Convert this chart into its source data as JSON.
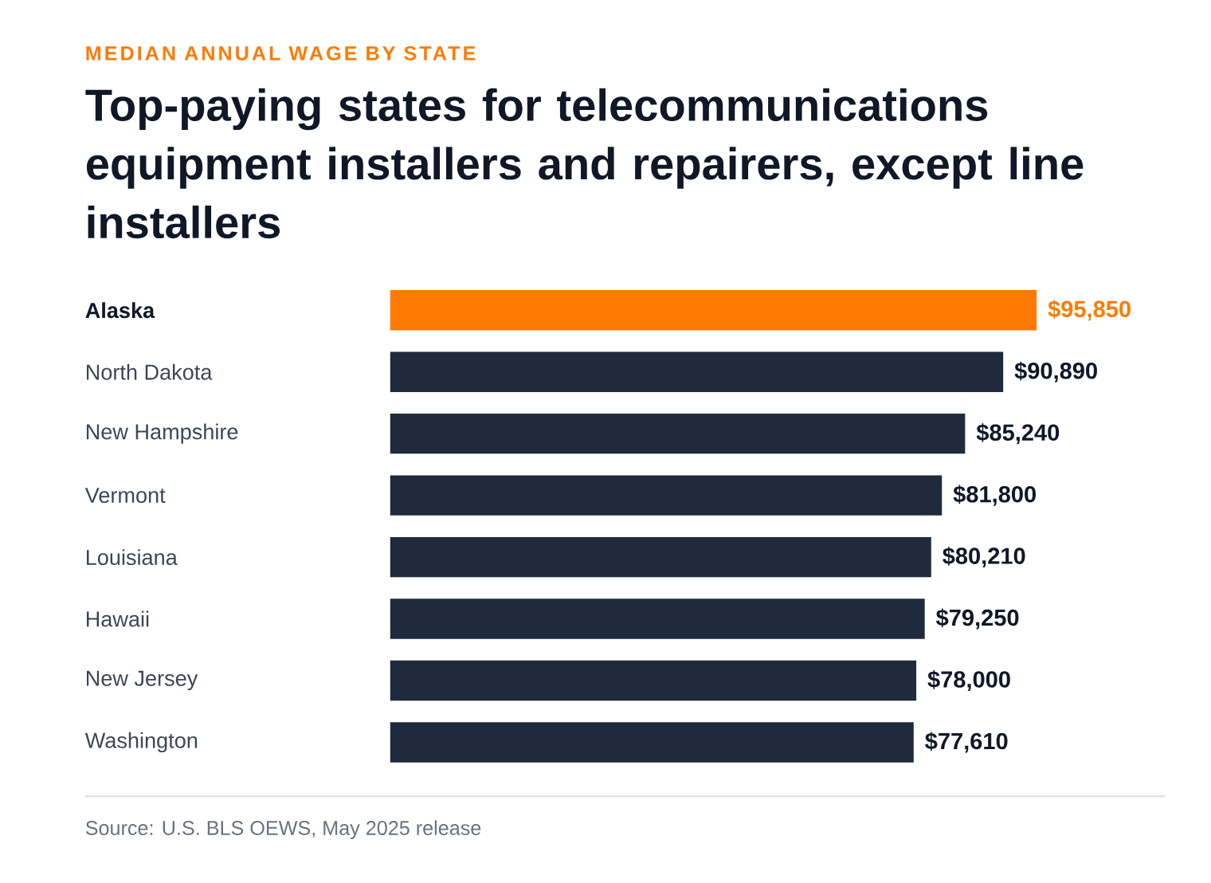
{
  "chart_data": {
    "type": "bar",
    "orientation": "horizontal",
    "subtitle": "MEDIAN ANNUAL WAGE BY STATE",
    "title": "Top-paying states for telecommunications equipment installers and repairers, except line installers",
    "categories": [
      "Alaska",
      "North Dakota",
      "New Hampshire",
      "Vermont",
      "Louisiana",
      "Hawaii",
      "New Jersey",
      "Washington"
    ],
    "values": [
      95850,
      90890,
      85240,
      81800,
      80210,
      79250,
      78000,
      77610
    ],
    "value_labels": [
      "$95,850",
      "$90,890",
      "$85,240",
      "$81,800",
      "$80,210",
      "$79,250",
      "$78,000",
      "$77,610"
    ],
    "colors": [
      "#ff7a00",
      "#1f2a3c",
      "#1f2a3c",
      "#1f2a3c",
      "#1f2a3c",
      "#1f2a3c",
      "#1f2a3c",
      "#1f2a3c"
    ],
    "annotations": [
      "Source: U.S. BLS OEWS, May 2025 release"
    ]
  }
}
